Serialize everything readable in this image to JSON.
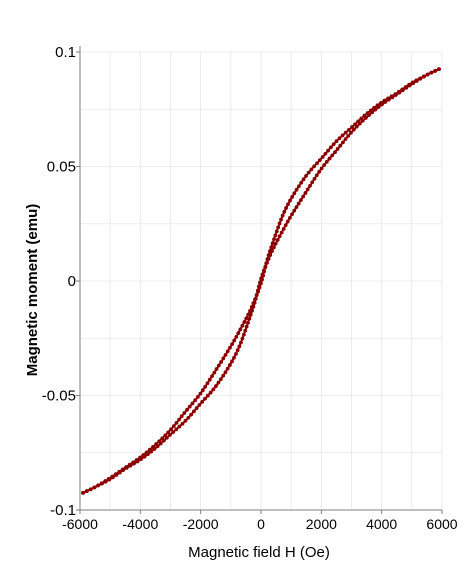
{
  "chart_data": {
    "type": "line",
    "title": "",
    "xlabel": "Magnetic field H (Oe)",
    "ylabel": "Magnetic moment (emu)",
    "xlim": [
      -6000,
      6000
    ],
    "ylim": [
      -0.1,
      0.1
    ],
    "x_ticks": [
      -6000,
      -4000,
      -2000,
      0,
      2000,
      4000,
      6000
    ],
    "x_tick_labels": [
      "-6000",
      "-4000",
      "-2000",
      "0",
      "2000",
      "4000",
      "6000"
    ],
    "y_ticks": [
      0.1,
      0.05,
      0,
      -0.05,
      -0.1
    ],
    "y_tick_labels": [
      "0.1",
      "0.05",
      "0",
      "-0.05",
      "-0.1"
    ],
    "grid": true,
    "legend": "none",
    "colors": {
      "series": "#8b0000",
      "axis": "#7f7f7f",
      "grid": "#e6e6e6"
    },
    "series": [
      {
        "x": [
          -5900,
          -5500,
          -5000,
          -4500,
          -4000,
          -3500,
          -3000,
          -2500,
          -2000,
          -1500,
          -1000,
          -700,
          -400,
          -200,
          0,
          200,
          400,
          700,
          1000,
          1500,
          2000,
          2500,
          3000,
          3500,
          4000,
          4500,
          5000,
          5500,
          5900
        ],
        "y": [
          -0.0925,
          -0.09,
          -0.086,
          -0.0815,
          -0.077,
          -0.0715,
          -0.065,
          -0.057,
          -0.049,
          -0.039,
          -0.0285,
          -0.0215,
          -0.014,
          -0.008,
          -0.001,
          0.009,
          0.017,
          0.028,
          0.036,
          0.046,
          0.0535,
          0.061,
          0.067,
          0.073,
          0.078,
          0.082,
          0.0865,
          0.09,
          0.0925
        ]
      },
      {
        "x": [
          5900,
          5500,
          5000,
          4500,
          4000,
          3500,
          3000,
          2500,
          2000,
          1500,
          1000,
          700,
          400,
          200,
          0,
          -200,
          -400,
          -700,
          -1000,
          -1500,
          -2000,
          -2500,
          -3000,
          -3500,
          -4000,
          -4500,
          -5000,
          -5500,
          -5900
        ],
        "y": [
          0.0925,
          0.09,
          0.086,
          0.0815,
          0.077,
          0.0715,
          0.065,
          0.057,
          0.049,
          0.039,
          0.0285,
          0.0215,
          0.014,
          0.008,
          0.001,
          -0.009,
          -0.017,
          -0.028,
          -0.036,
          -0.046,
          -0.0535,
          -0.061,
          -0.067,
          -0.073,
          -0.078,
          -0.082,
          -0.0865,
          -0.09,
          -0.0925
        ]
      }
    ]
  }
}
